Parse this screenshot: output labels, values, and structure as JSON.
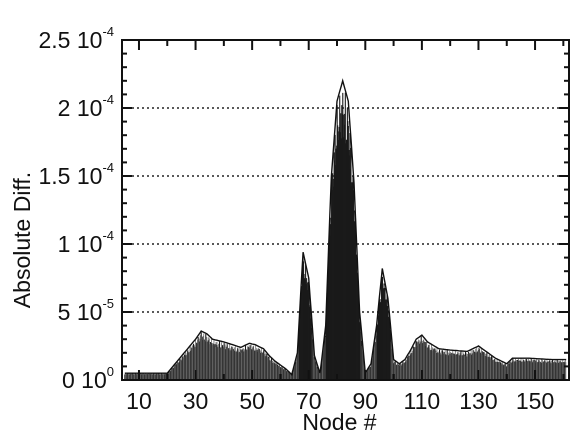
{
  "chart_data": {
    "type": "bar",
    "title": "",
    "xlabel": "Node #",
    "ylabel": "Absolute Diff.",
    "xlim": [
      4,
      162
    ],
    "ylim": [
      0,
      0.00025
    ],
    "x_ticks": [
      10,
      30,
      50,
      70,
      90,
      110,
      130,
      150
    ],
    "x_tick_labels": [
      "10",
      "30",
      "50",
      "70",
      "90",
      "110",
      "130",
      "150"
    ],
    "y_ticks": [
      {
        "value": 0,
        "mantissa": "0",
        "exponent": "0"
      },
      {
        "value": 5e-05,
        "mantissa": "5",
        "exponent": "-5"
      },
      {
        "value": 0.0001,
        "mantissa": "1",
        "exponent": "-4"
      },
      {
        "value": 0.00015,
        "mantissa": "1.5",
        "exponent": "-4"
      },
      {
        "value": 0.0002,
        "mantissa": "2",
        "exponent": "-4"
      },
      {
        "value": 0.00025,
        "mantissa": "2.5",
        "exponent": "-4"
      }
    ],
    "grid": "horizontal dotted",
    "bar_color": "#1a1a1a",
    "envelope": [
      [
        5,
        5e-06
      ],
      [
        20,
        5e-06
      ],
      [
        22,
        1e-05
      ],
      [
        24,
        1.5e-05
      ],
      [
        26,
        2e-05
      ],
      [
        28,
        2.5e-05
      ],
      [
        30,
        3e-05
      ],
      [
        32,
        3.6e-05
      ],
      [
        34,
        3.4e-05
      ],
      [
        36,
        3e-05
      ],
      [
        40,
        2.8e-05
      ],
      [
        46,
        2.4e-05
      ],
      [
        49,
        2.7e-05
      ],
      [
        51,
        2.6e-05
      ],
      [
        54,
        2.3e-05
      ],
      [
        56,
        1.8e-05
      ],
      [
        58,
        1.4e-05
      ],
      [
        62,
        8e-06
      ],
      [
        64,
        4e-06
      ],
      [
        66,
        2e-05
      ],
      [
        68,
        9.4e-05
      ],
      [
        70,
        7.5e-05
      ],
      [
        72,
        1.8e-05
      ],
      [
        74,
        5e-06
      ],
      [
        76,
        4e-05
      ],
      [
        78,
        0.00015
      ],
      [
        80,
        0.000205
      ],
      [
        82,
        0.00022
      ],
      [
        84,
        0.000205
      ],
      [
        86,
        0.000145
      ],
      [
        88,
        5e-05
      ],
      [
        90,
        5e-06
      ],
      [
        92,
        1.2e-05
      ],
      [
        94,
        4e-05
      ],
      [
        96,
        8.2e-05
      ],
      [
        98,
        6e-05
      ],
      [
        100,
        1.5e-05
      ],
      [
        102,
        1.2e-05
      ],
      [
        104,
        1.5e-05
      ],
      [
        106,
        2.2e-05
      ],
      [
        108,
        3e-05
      ],
      [
        110,
        3.3e-05
      ],
      [
        112,
        2.8e-05
      ],
      [
        116,
        2.3e-05
      ],
      [
        120,
        2.2e-05
      ],
      [
        126,
        2.1e-05
      ],
      [
        130,
        2.5e-05
      ],
      [
        132,
        2.2e-05
      ],
      [
        136,
        1.6e-05
      ],
      [
        140,
        1.2e-05
      ],
      [
        142,
        1.6e-05
      ],
      [
        148,
        1.6e-05
      ],
      [
        156,
        1.5e-05
      ],
      [
        161,
        1.5e-05
      ]
    ]
  }
}
